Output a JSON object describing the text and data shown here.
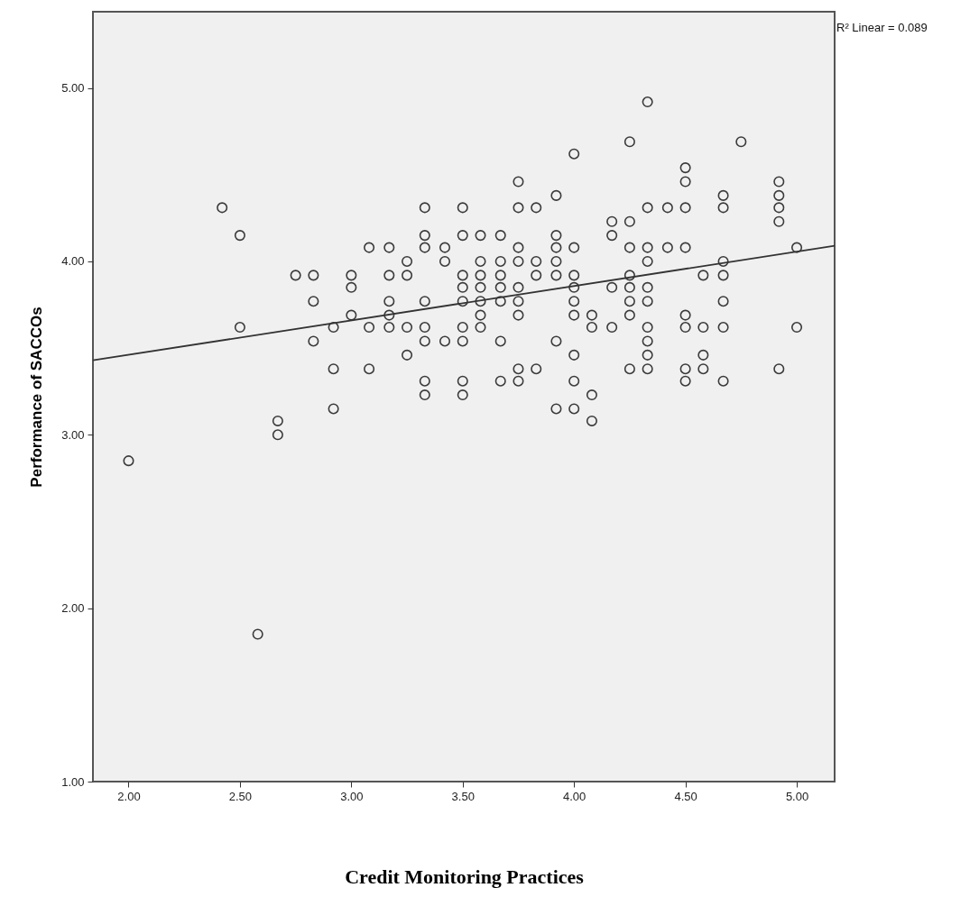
{
  "chart_data": {
    "type": "scatter",
    "xlabel": "Credit Monitoring Practices",
    "ylabel": "Performance of SACCOs",
    "annotations": [
      "R² Linear = 0.089"
    ],
    "xlim": [
      1.84,
      5.17
    ],
    "ylim": [
      1.0,
      5.44
    ],
    "xticks": [
      {
        "value": 2,
        "label": "2.00"
      },
      {
        "value": 2.5,
        "label": "2.50"
      },
      {
        "value": 3,
        "label": "3.00"
      },
      {
        "value": 3.5,
        "label": "3.50"
      },
      {
        "value": 4,
        "label": "4.00"
      },
      {
        "value": 4.5,
        "label": "4.50"
      },
      {
        "value": 5,
        "label": "5.00"
      }
    ],
    "yticks": [
      {
        "value": 1,
        "label": "1.00"
      },
      {
        "value": 2,
        "label": "2.00"
      },
      {
        "value": 3,
        "label": "3.00"
      },
      {
        "value": 4,
        "label": "4.00"
      },
      {
        "value": 5,
        "label": "5.00"
      }
    ],
    "grid": false,
    "legend": false,
    "marker": "circle",
    "series": [
      {
        "type": "scatter",
        "color": "#3a3a3a",
        "x": [
          2.0,
          2.42,
          2.5,
          2.5,
          2.58,
          2.67,
          2.67,
          2.75,
          2.83,
          2.83,
          2.83,
          2.92,
          2.92,
          2.92,
          3.0,
          3.0,
          3.0,
          3.08,
          3.08,
          3.08,
          3.17,
          3.17,
          3.17,
          3.17,
          3.17,
          3.25,
          3.25,
          3.25,
          3.25,
          3.33,
          3.33,
          3.33,
          3.33,
          3.33,
          3.33,
          3.33,
          3.33,
          3.42,
          3.42,
          3.42,
          3.5,
          3.5,
          3.5,
          3.5,
          3.5,
          3.5,
          3.5,
          3.5,
          3.5,
          3.58,
          3.58,
          3.58,
          3.58,
          3.58,
          3.58,
          3.58,
          3.67,
          3.67,
          3.67,
          3.67,
          3.67,
          3.67,
          3.67,
          3.75,
          3.75,
          3.75,
          3.75,
          3.75,
          3.75,
          3.75,
          3.75,
          3.75,
          3.83,
          3.83,
          3.83,
          3.83,
          3.92,
          3.92,
          3.92,
          3.92,
          3.92,
          3.92,
          3.92,
          4.0,
          4.0,
          4.0,
          4.0,
          4.0,
          4.0,
          4.0,
          4.0,
          4.0,
          4.08,
          4.08,
          4.08,
          4.08,
          4.17,
          4.17,
          4.17,
          4.17,
          4.25,
          4.25,
          4.25,
          4.25,
          4.25,
          4.25,
          4.25,
          4.25,
          4.33,
          4.33,
          4.33,
          4.33,
          4.33,
          4.33,
          4.33,
          4.33,
          4.33,
          4.33,
          4.42,
          4.42,
          4.5,
          4.5,
          4.5,
          4.5,
          4.5,
          4.5,
          4.5,
          4.5,
          4.58,
          4.58,
          4.58,
          4.58,
          4.67,
          4.67,
          4.67,
          4.67,
          4.67,
          4.67,
          4.67,
          4.75,
          4.92,
          4.92,
          4.92,
          4.92,
          4.92,
          5.0,
          5.0
        ],
        "values": [
          2.85,
          4.31,
          4.15,
          3.62,
          1.85,
          3.08,
          3.0,
          3.92,
          3.92,
          3.77,
          3.54,
          3.62,
          3.38,
          3.15,
          3.92,
          3.85,
          3.69,
          4.08,
          3.62,
          3.38,
          4.08,
          3.92,
          3.77,
          3.69,
          3.62,
          4.0,
          3.92,
          3.62,
          3.46,
          4.31,
          4.15,
          4.08,
          3.77,
          3.62,
          3.54,
          3.31,
          3.23,
          4.08,
          4.0,
          3.54,
          4.31,
          4.15,
          3.92,
          3.85,
          3.77,
          3.62,
          3.54,
          3.31,
          3.23,
          4.15,
          4.0,
          3.92,
          3.85,
          3.77,
          3.69,
          3.62,
          4.15,
          4.0,
          3.92,
          3.85,
          3.77,
          3.54,
          3.31,
          4.46,
          4.31,
          4.08,
          4.0,
          3.85,
          3.77,
          3.69,
          3.38,
          3.31,
          4.31,
          4.0,
          3.92,
          3.38,
          4.38,
          4.15,
          4.08,
          4.0,
          3.92,
          3.54,
          3.15,
          4.62,
          4.08,
          3.92,
          3.85,
          3.77,
          3.69,
          3.46,
          3.31,
          3.15,
          3.69,
          3.62,
          3.23,
          3.08,
          4.23,
          4.15,
          3.85,
          3.62,
          4.69,
          4.23,
          4.08,
          3.92,
          3.85,
          3.77,
          3.69,
          3.38,
          4.92,
          4.31,
          4.08,
          4.0,
          3.85,
          3.77,
          3.62,
          3.54,
          3.46,
          3.38,
          4.31,
          4.08,
          4.54,
          4.46,
          4.31,
          4.08,
          3.69,
          3.62,
          3.38,
          3.31,
          3.92,
          3.62,
          3.46,
          3.38,
          4.38,
          4.31,
          4.0,
          3.92,
          3.77,
          3.62,
          3.31,
          4.69,
          4.46,
          4.38,
          4.31,
          4.23,
          3.38,
          4.08,
          3.62
        ]
      },
      {
        "type": "line",
        "color": "#333333",
        "marker": "none",
        "x": [
          1.84,
          5.17
        ],
        "values": [
          3.43,
          4.09
        ]
      }
    ]
  }
}
